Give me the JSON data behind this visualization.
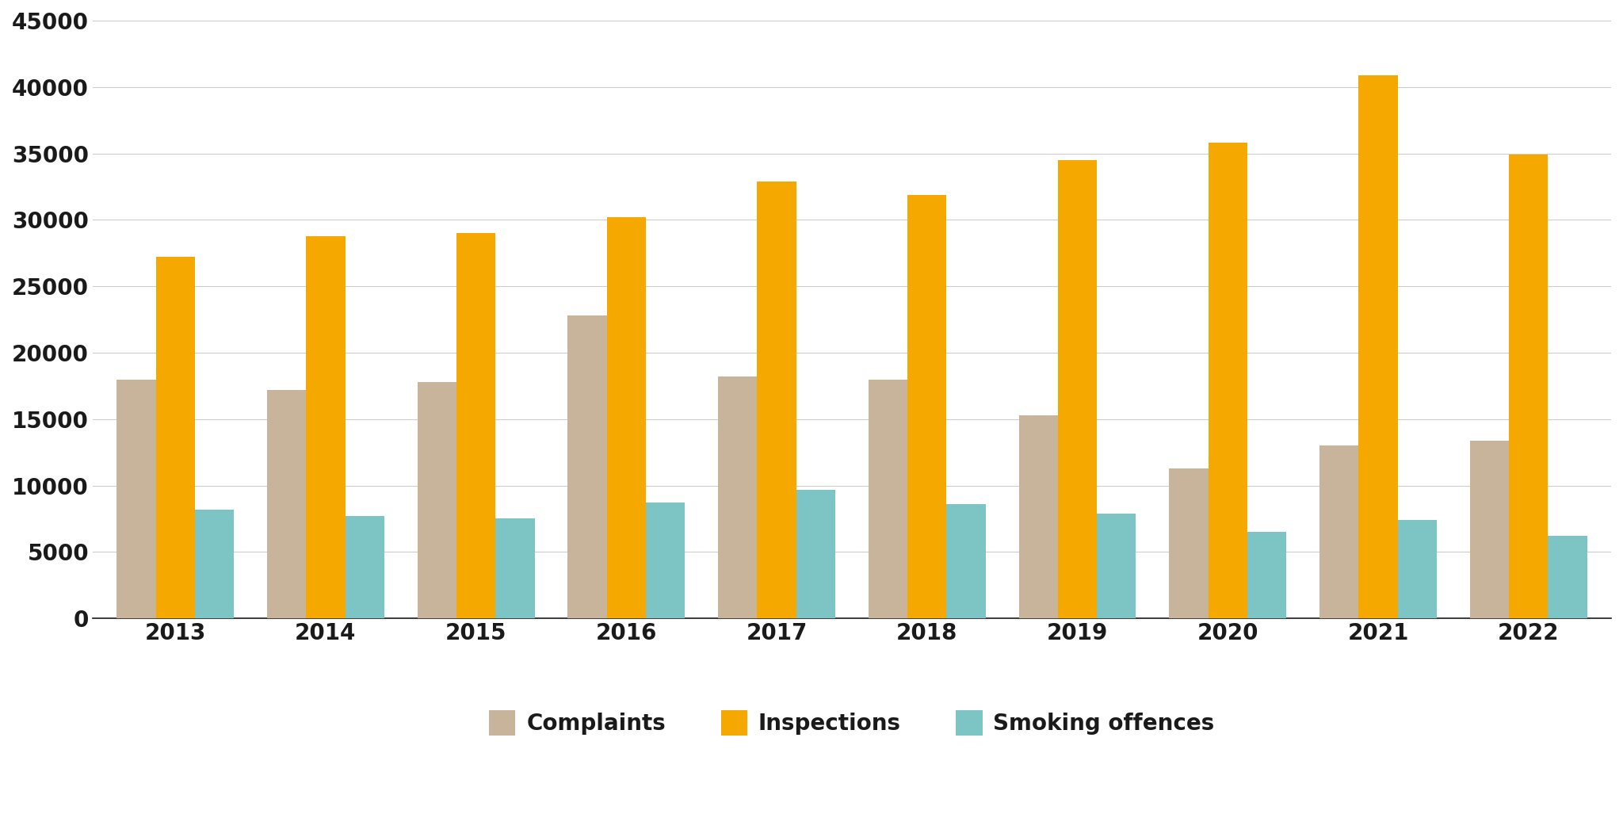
{
  "years": [
    "2013",
    "2014",
    "2015",
    "2016",
    "2017",
    "2018",
    "2019",
    "2020",
    "2021",
    "2022"
  ],
  "complaints": [
    18000,
    17200,
    17800,
    22800,
    18200,
    18000,
    15300,
    11300,
    13000,
    13400
  ],
  "inspections": [
    27200,
    28800,
    29000,
    30200,
    32900,
    31900,
    34500,
    35800,
    40900,
    34900
  ],
  "smoking_offences": [
    8200,
    7700,
    7500,
    8700,
    9700,
    8600,
    7900,
    6500,
    7400,
    6200
  ],
  "complaints_color": "#c8b49a",
  "inspections_color": "#f5a800",
  "offences_color": "#7dc4c4",
  "background_color": "#ffffff",
  "ylim": [
    0,
    45000
  ],
  "yticks": [
    0,
    5000,
    10000,
    15000,
    20000,
    25000,
    30000,
    35000,
    40000,
    45000
  ],
  "bar_width": 0.26,
  "legend_labels": [
    "Complaints",
    "Inspections",
    "Smoking offences"
  ],
  "grid_color": "#cccccc",
  "tick_color": "#1a1a1a",
  "figsize": [
    20.48,
    10.56
  ],
  "dpi": 100
}
